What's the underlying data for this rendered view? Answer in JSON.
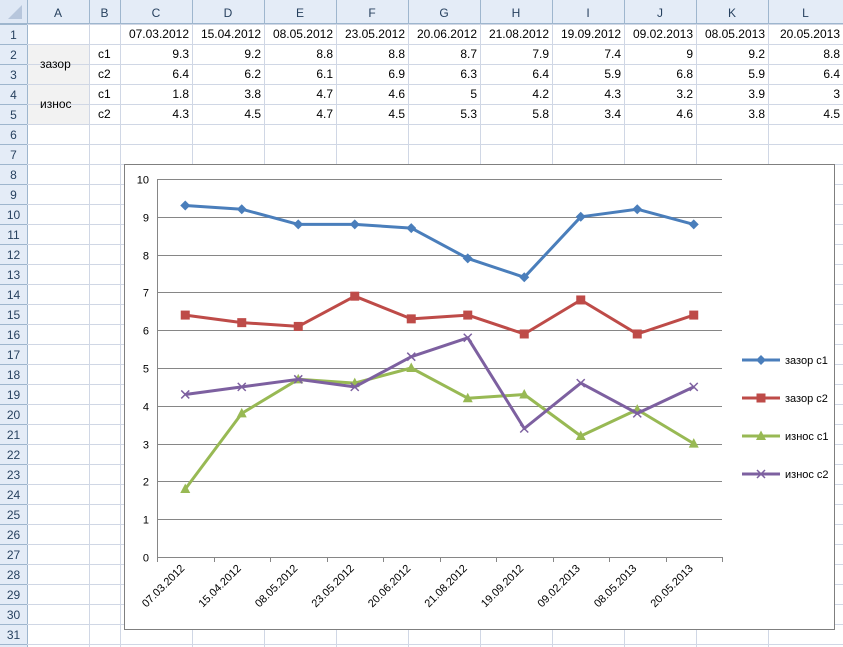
{
  "sheet": {
    "columns": [
      "A",
      "B",
      "C",
      "D",
      "E",
      "F",
      "G",
      "H",
      "I",
      "J",
      "K",
      "L"
    ],
    "row_numbers": [
      "1",
      "2",
      "3",
      "4",
      "5",
      "6",
      "7",
      "8",
      "9",
      "10",
      "11",
      "12",
      "13",
      "14",
      "15",
      "16",
      "17",
      "18",
      "19",
      "20",
      "21",
      "22",
      "23",
      "24",
      "25",
      "26",
      "27",
      "28",
      "29",
      "30",
      "31"
    ],
    "dates": [
      "07.03.2012",
      "15.04.2012",
      "08.05.2012",
      "23.05.2012",
      "20.06.2012",
      "21.08.2012",
      "19.09.2012",
      "09.02.2013",
      "08.05.2013",
      "20.05.2013"
    ],
    "groups": [
      {
        "label": "зазор",
        "rows": [
          {
            "sub": "c1",
            "values": [
              "9.3",
              "9.2",
              "8.8",
              "8.8",
              "8.7",
              "7.9",
              "7.4",
              "9",
              "9.2",
              "8.8"
            ]
          },
          {
            "sub": "c2",
            "values": [
              "6.4",
              "6.2",
              "6.1",
              "6.9",
              "6.3",
              "6.4",
              "5.9",
              "6.8",
              "5.9",
              "6.4"
            ]
          }
        ]
      },
      {
        "label": "износ",
        "rows": [
          {
            "sub": "c1",
            "values": [
              "1.8",
              "3.8",
              "4.7",
              "4.6",
              "5",
              "4.2",
              "4.3",
              "3.2",
              "3.9",
              "3"
            ]
          },
          {
            "sub": "c2",
            "values": [
              "4.3",
              "4.5",
              "4.7",
              "4.5",
              "5.3",
              "5.8",
              "3.4",
              "4.6",
              "3.8",
              "4.5"
            ]
          }
        ]
      }
    ]
  },
  "chart_data": {
    "type": "line",
    "title": "",
    "xlabel": "",
    "ylabel": "",
    "categories": [
      "07.03.2012",
      "15.04.2012",
      "08.05.2012",
      "23.05.2012",
      "20.06.2012",
      "21.08.2012",
      "19.09.2012",
      "09.02.2013",
      "08.05.2013",
      "20.05.2013"
    ],
    "ylim": [
      0,
      10
    ],
    "yticks": [
      0,
      1,
      2,
      3,
      4,
      5,
      6,
      7,
      8,
      9,
      10
    ],
    "grid": true,
    "legend": "right",
    "series": [
      {
        "name": "зазор c1",
        "color": "#4a7ebb",
        "marker": "diamond",
        "values": [
          9.3,
          9.2,
          8.8,
          8.8,
          8.7,
          7.9,
          7.4,
          9,
          9.2,
          8.8
        ]
      },
      {
        "name": "зазор c2",
        "color": "#be4b48",
        "marker": "square",
        "values": [
          6.4,
          6.2,
          6.1,
          6.9,
          6.3,
          6.4,
          5.9,
          6.8,
          5.9,
          6.4
        ]
      },
      {
        "name": "износ c1",
        "color": "#98b954",
        "marker": "triangle",
        "values": [
          1.8,
          3.8,
          4.7,
          4.6,
          5,
          4.2,
          4.3,
          3.2,
          3.9,
          3
        ]
      },
      {
        "name": "износ c2",
        "color": "#7d60a0",
        "marker": "x",
        "values": [
          4.3,
          4.5,
          4.7,
          4.5,
          5.3,
          5.8,
          3.4,
          4.6,
          3.8,
          4.5
        ]
      }
    ]
  }
}
